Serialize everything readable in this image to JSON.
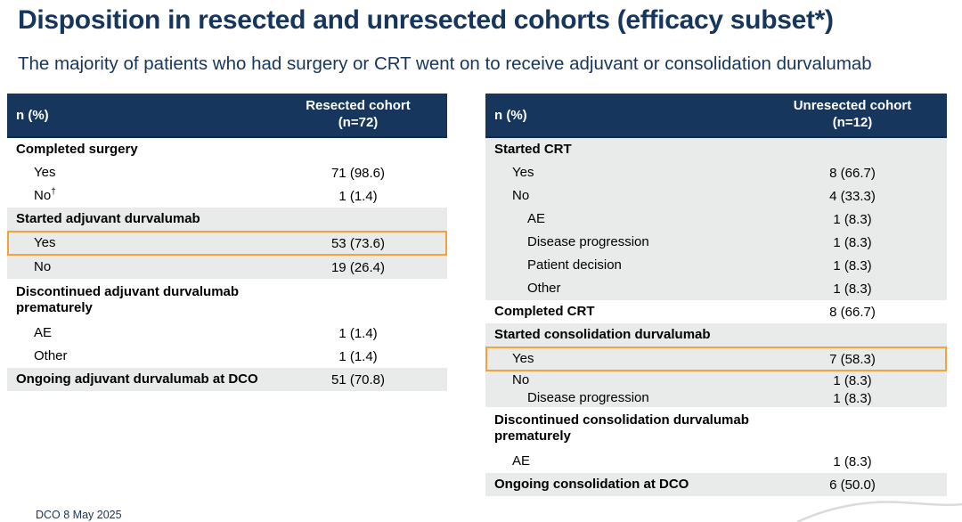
{
  "slide": {
    "title": "Disposition in resected and unresected cohorts (efficacy subset*)",
    "subtitle": "The majority of patients who had surgery or CRT went on to receive adjuvant or consolidation durvalumab",
    "footer": "DCO 8 May 2025"
  },
  "colors": {
    "navy": "#17365D",
    "gray_band": "#E9EAEA",
    "highlight_orange": "#F2A33A",
    "swoosh_gray": "#DBDBDB"
  },
  "left_table": {
    "header": {
      "label": "n (%)",
      "cohort_line1": "Resected cohort",
      "cohort_line2": "(n=72)"
    },
    "rows": [
      {
        "label": "Completed surgery",
        "value": "",
        "bold": true,
        "indent": 0,
        "shade": false
      },
      {
        "label": "Yes",
        "value": "71 (98.6)",
        "indent": 1,
        "shade": false
      },
      {
        "label": "No",
        "sup": "†",
        "value": "1 (1.4)",
        "indent": 1,
        "shade": false
      },
      {
        "label": "Started adjuvant durvalumab",
        "value": "",
        "bold": true,
        "indent": 0,
        "shade": true
      },
      {
        "label": "Yes",
        "value": "53 (73.6)",
        "indent": 1,
        "shade": true,
        "highlight": true
      },
      {
        "label": "No",
        "value": "19 (26.4)",
        "indent": 1,
        "shade": true
      },
      {
        "label": "Discontinued adjuvant durvalumab prematurely",
        "value": "",
        "bold": true,
        "indent": 0,
        "shade": false,
        "wrap": true
      },
      {
        "label": "AE",
        "value": "1 (1.4)",
        "indent": 1,
        "shade": false
      },
      {
        "label": "Other",
        "value": "1 (1.4)",
        "indent": 1,
        "shade": false
      },
      {
        "label": "Ongoing adjuvant durvalumab at DCO",
        "value": "51 (70.8)",
        "bold": true,
        "indent": 0,
        "shade": true
      }
    ]
  },
  "right_table": {
    "header": {
      "label": "n (%)",
      "cohort_line1": "Unresected cohort",
      "cohort_line2": "(n=12)"
    },
    "rows": [
      {
        "label": "Started CRT",
        "value": "",
        "bold": true,
        "indent": 0,
        "shade": true
      },
      {
        "label": "Yes",
        "value": "8 (66.7)",
        "indent": 1,
        "shade": true
      },
      {
        "label": "No",
        "value": "4 (33.3)",
        "indent": 1,
        "shade": true
      },
      {
        "label": "AE",
        "value": "1 (8.3)",
        "indent": 2,
        "shade": true
      },
      {
        "label": "Disease progression",
        "value": "1 (8.3)",
        "indent": 2,
        "shade": true
      },
      {
        "label": "Patient decision",
        "value": "1 (8.3)",
        "indent": 2,
        "shade": true
      },
      {
        "label": "Other",
        "value": "1 (8.3)",
        "indent": 2,
        "shade": true
      },
      {
        "label": "Completed CRT",
        "value": "8 (66.7)",
        "bold": true,
        "indent": 0,
        "shade": false
      },
      {
        "label": "Started consolidation durvalumab",
        "value": "",
        "bold": true,
        "indent": 0,
        "shade": true
      },
      {
        "label": "Yes",
        "value": "7 (58.3)",
        "indent": 1,
        "shade": true,
        "highlight": true
      },
      {
        "label": "No",
        "value": "1 (8.3)",
        "indent": 1,
        "shade": true,
        "compact": true
      },
      {
        "label": "Disease progression",
        "value": "1 (8.3)",
        "indent": 2,
        "shade": true,
        "compact": true
      },
      {
        "label": "Discontinued consolidation durvalumab prematurely",
        "value": "",
        "bold": true,
        "indent": 0,
        "shade": false,
        "wrap": true
      },
      {
        "label": "AE",
        "value": "1 (8.3)",
        "indent": 1,
        "shade": false
      },
      {
        "label": "Ongoing consolidation at DCO",
        "value": "6 (50.0)",
        "bold": true,
        "indent": 0,
        "shade": true
      }
    ]
  }
}
